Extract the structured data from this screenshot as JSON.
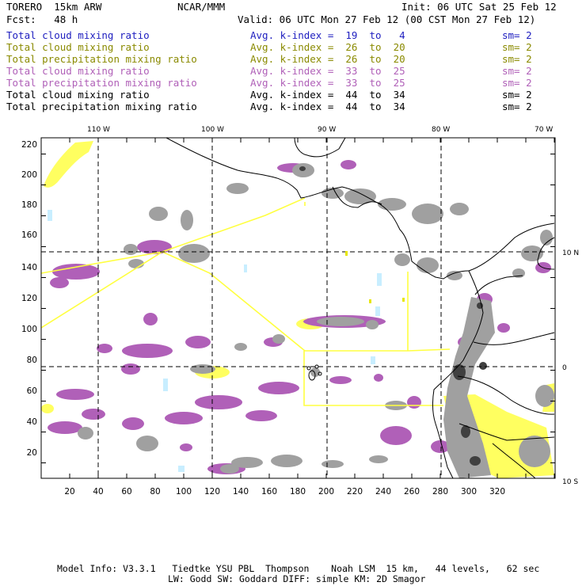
{
  "header": {
    "model": "TORERO  15km ARW",
    "org": "NCAR/MMM",
    "init": "Init: 06 UTC Sat 25 Feb 12",
    "fcst": "Fcst:   48 h",
    "valid": "Valid: 06 UTC Mon 27 Feb 12 (00 CST Mon 27 Feb 12)"
  },
  "legend": [
    {
      "field": "Total cloud mixing ratio",
      "index": "Avg. k-index =  19  to   4",
      "sm": "sm= 2",
      "color": "#2020c0"
    },
    {
      "field": "Total cloud mixing ratio",
      "index": "Avg. k-index =  26  to  20",
      "sm": "sm= 2",
      "color": "#8a8a00"
    },
    {
      "field": "Total precipitation mixing ratio",
      "index": "Avg. k-index =  26  to  20",
      "sm": "sm= 2",
      "color": "#8a8a00"
    },
    {
      "field": "Total cloud mixing ratio",
      "index": "Avg. k-index =  33  to  25",
      "sm": "sm= 2",
      "color": "#b060b8"
    },
    {
      "field": "Total precipitation mixing ratio",
      "index": "Avg. k-index =  33  to  25",
      "sm": "sm= 2",
      "color": "#b060b8"
    },
    {
      "field": "Total cloud mixing ratio",
      "index": "Avg. k-index =  44  to  34",
      "sm": "sm= 2",
      "color": "#000000"
    },
    {
      "field": "Total precipitation mixing ratio",
      "index": "Avg. k-index =  44  to  34",
      "sm": "sm= 2",
      "color": "#000000"
    }
  ],
  "map": {
    "lon_labels": [
      "110 W",
      "100 W",
      "90 W",
      "80 W",
      "70 W"
    ],
    "lat_labels": [
      "10 N",
      "0",
      "10 S"
    ],
    "x_ticks": [
      "20",
      "40",
      "60",
      "80",
      "100",
      "120",
      "140",
      "160",
      "180",
      "200",
      "220",
      "240",
      "260",
      "280",
      "300",
      "320"
    ],
    "y_ticks": [
      "220",
      "200",
      "180",
      "160",
      "140",
      "120",
      "100",
      "80",
      "60",
      "40",
      "20"
    ],
    "colors": {
      "cloud_light": "#c8eeff",
      "cloud_yellow": "#ffff60",
      "precip_purple": "#b060b8",
      "cloud_gray": "#a0a0a0",
      "nest_box": "#ffff40"
    }
  },
  "footer": {
    "line1": "Model Info: V3.3.1   Tiedtke YSU PBL  Thompson    Noah LSM  15 km,   44 levels,   62 sec",
    "line2": "LW: Godd SW: Goddard DIFF: simple KM: 2D Smagor"
  }
}
